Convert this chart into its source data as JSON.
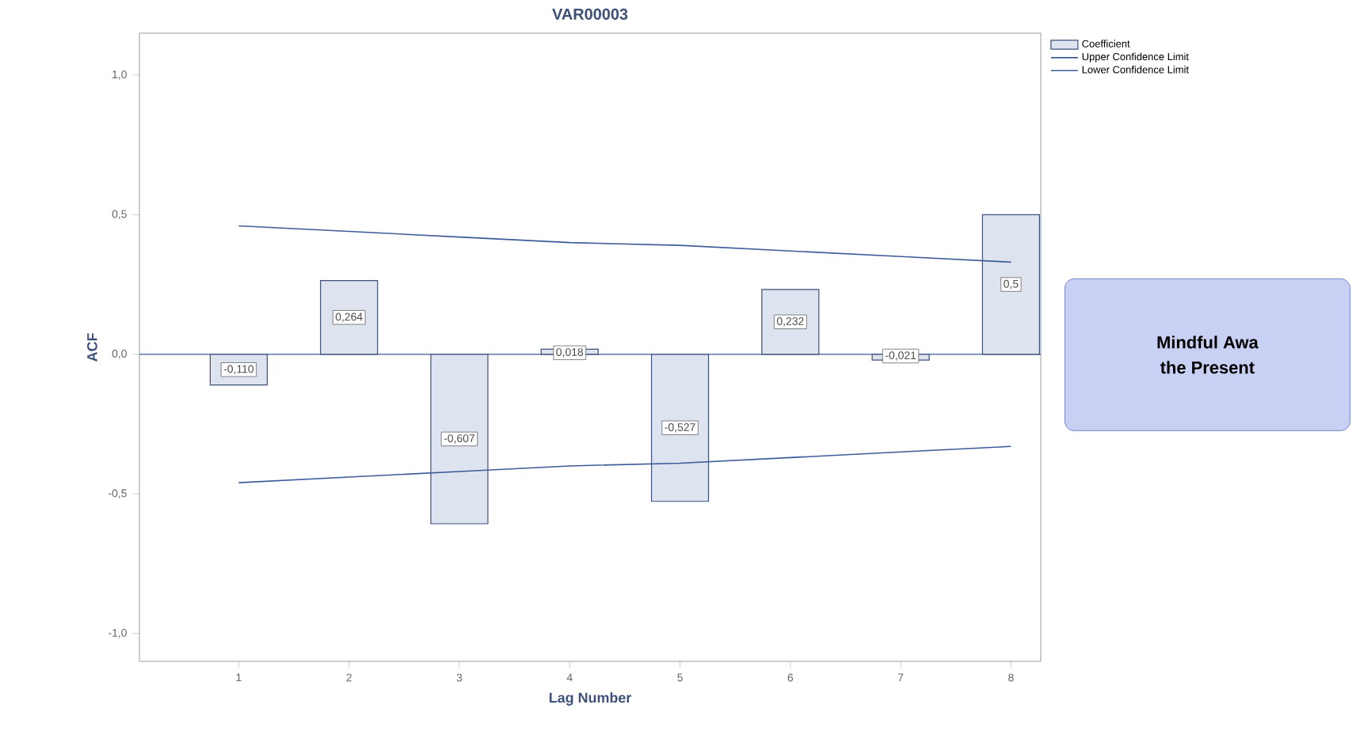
{
  "chart_data": {
    "type": "bar",
    "title": "VAR00003",
    "xlabel": "Lag Number",
    "ylabel": "ACF",
    "categories": [
      "1",
      "2",
      "3",
      "4",
      "5",
      "6",
      "7",
      "8"
    ],
    "series": [
      {
        "name": "Coefficient",
        "color": "#dde3ef",
        "values": [
          -0.11,
          0.264,
          -0.607,
          0.018,
          -0.527,
          0.232,
          -0.021,
          0.5
        ],
        "value_labels": [
          "-0,110",
          "0,264",
          "-0,607",
          "0,018",
          "-0,527",
          "0,232",
          "-0,021",
          "0,5"
        ]
      },
      {
        "name": "Upper Confidence Limit",
        "type": "line",
        "color": "#3d5b99",
        "values": [
          0.46,
          0.44,
          0.42,
          0.4,
          0.39,
          0.37,
          0.35,
          0.33
        ]
      },
      {
        "name": "Lower Confidence Limit",
        "type": "line",
        "color": "#3d5b99",
        "values": [
          -0.46,
          -0.44,
          -0.42,
          -0.4,
          -0.39,
          -0.37,
          -0.35,
          -0.33
        ]
      }
    ],
    "ylim": [
      -1.1,
      1.15
    ],
    "yticks": [
      {
        "value": -1,
        "label": "-1,0"
      },
      {
        "value": -0.5,
        "label": "-0,5"
      },
      {
        "value": 0,
        "label": "0,0"
      },
      {
        "value": 0.5,
        "label": "0,5"
      },
      {
        "value": 1,
        "label": "1,0"
      }
    ],
    "ref_lines": [
      {
        "axis": "y",
        "value": 0,
        "color": "#3d5b99"
      }
    ],
    "legend": "top right",
    "grid": false,
    "annotations": [
      "Mindful Awa",
      "the Present"
    ]
  }
}
